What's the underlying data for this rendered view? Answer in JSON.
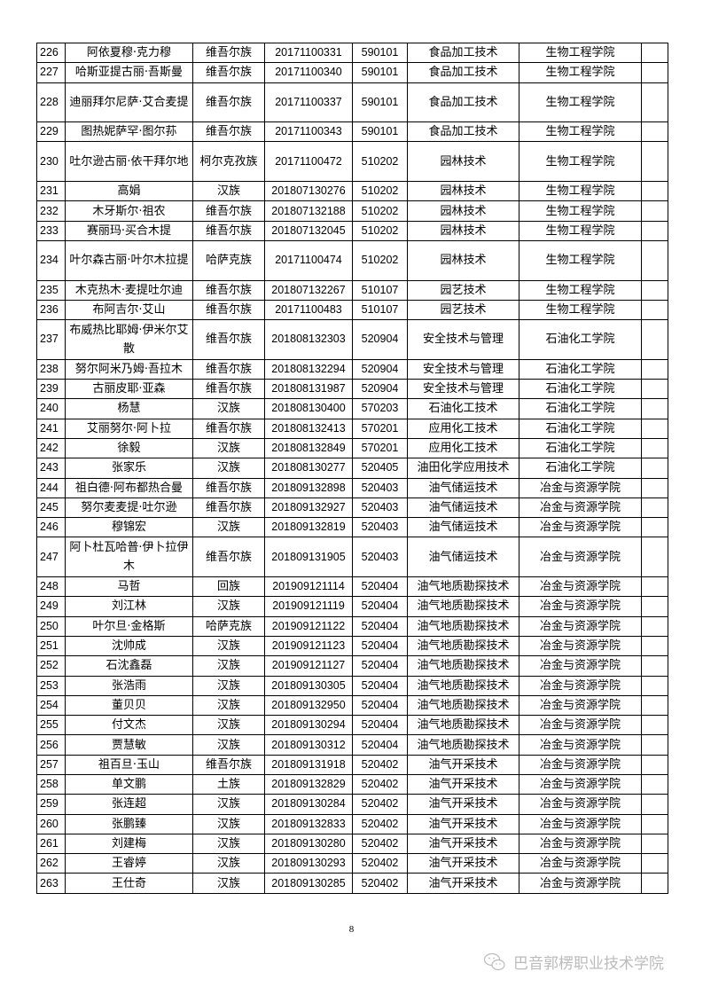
{
  "rows": [
    {
      "no": "226",
      "name": "阿依夏穆·克力穆",
      "ethnicity": "维吾尔族",
      "id": "20171100331",
      "code": "590101",
      "major": "食品加工技术",
      "college": "生物工程学院",
      "note": ""
    },
    {
      "no": "227",
      "name": "哈斯亚提古丽·吾斯曼",
      "ethnicity": "维吾尔族",
      "id": "20171100340",
      "code": "590101",
      "major": "食品加工技术",
      "college": "生物工程学院",
      "note": ""
    },
    {
      "no": "228",
      "name": "迪丽拜尔尼萨·艾合麦提",
      "ethnicity": "维吾尔族",
      "id": "20171100337",
      "code": "590101",
      "major": "食品加工技术",
      "college": "生物工程学院",
      "note": ""
    },
    {
      "no": "229",
      "name": "图热妮萨罕·图尔荪",
      "ethnicity": "维吾尔族",
      "id": "20171100343",
      "code": "590101",
      "major": "食品加工技术",
      "college": "生物工程学院",
      "note": ""
    },
    {
      "no": "230",
      "name": "吐尔逊古丽·依干拜尔地",
      "ethnicity": "柯尔克孜族",
      "id": "20171100472",
      "code": "510202",
      "major": "园林技术",
      "college": "生物工程学院",
      "note": ""
    },
    {
      "no": "231",
      "name": "高娟",
      "ethnicity": "汉族",
      "id": "201807130276",
      "code": "510202",
      "major": "园林技术",
      "college": "生物工程学院",
      "note": ""
    },
    {
      "no": "232",
      "name": "木牙斯尔·祖农",
      "ethnicity": "维吾尔族",
      "id": "201807132188",
      "code": "510202",
      "major": "园林技术",
      "college": "生物工程学院",
      "note": ""
    },
    {
      "no": "233",
      "name": "赛丽玛·买合木提",
      "ethnicity": "维吾尔族",
      "id": "201807132045",
      "code": "510202",
      "major": "园林技术",
      "college": "生物工程学院",
      "note": ""
    },
    {
      "no": "234",
      "name": "叶尔森古丽·叶尔木拉提",
      "ethnicity": "哈萨克族",
      "id": "20171100474",
      "code": "510202",
      "major": "园林技术",
      "college": "生物工程学院",
      "note": ""
    },
    {
      "no": "235",
      "name": "木克热木·麦提吐尔迪",
      "ethnicity": "维吾尔族",
      "id": "201807132267",
      "code": "510107",
      "major": "园艺技术",
      "college": "生物工程学院",
      "note": ""
    },
    {
      "no": "236",
      "name": "布阿吉尔·艾山",
      "ethnicity": "维吾尔族",
      "id": "20171100483",
      "code": "510107",
      "major": "园艺技术",
      "college": "生物工程学院",
      "note": ""
    },
    {
      "no": "237",
      "name": "布威热比耶姆·伊米尔艾散",
      "ethnicity": "维吾尔族",
      "id": "201808132303",
      "code": "520904",
      "major": "安全技术与管理",
      "college": "石油化工学院",
      "note": ""
    },
    {
      "no": "238",
      "name": "努尔阿米乃姆·吾拉木",
      "ethnicity": "维吾尔族",
      "id": "201808132294",
      "code": "520904",
      "major": "安全技术与管理",
      "college": "石油化工学院",
      "note": ""
    },
    {
      "no": "239",
      "name": "古丽皮耶·亚森",
      "ethnicity": "维吾尔族",
      "id": "201808131987",
      "code": "520904",
      "major": "安全技术与管理",
      "college": "石油化工学院",
      "note": ""
    },
    {
      "no": "240",
      "name": "杨慧",
      "ethnicity": "汉族",
      "id": "201808130400",
      "code": "570203",
      "major": "石油化工技术",
      "college": "石油化工学院",
      "note": ""
    },
    {
      "no": "241",
      "name": "艾丽努尔·阿卜拉",
      "ethnicity": "维吾尔族",
      "id": "201808132413",
      "code": "570201",
      "major": "应用化工技术",
      "college": "石油化工学院",
      "note": ""
    },
    {
      "no": "242",
      "name": "徐毅",
      "ethnicity": "汉族",
      "id": "201808132849",
      "code": "570201",
      "major": "应用化工技术",
      "college": "石油化工学院",
      "note": ""
    },
    {
      "no": "243",
      "name": "张家乐",
      "ethnicity": "汉族",
      "id": "201808130277",
      "code": "520405",
      "major": "油田化学应用技术",
      "college": "石油化工学院",
      "note": ""
    },
    {
      "no": "244",
      "name": "祖白德·阿布都热合曼",
      "ethnicity": "维吾尔族",
      "id": "201809132898",
      "code": "520403",
      "major": "油气储运技术",
      "college": "冶金与资源学院",
      "note": ""
    },
    {
      "no": "245",
      "name": "努尔麦麦提·吐尔逊",
      "ethnicity": "维吾尔族",
      "id": "201809132927",
      "code": "520403",
      "major": "油气储运技术",
      "college": "冶金与资源学院",
      "note": ""
    },
    {
      "no": "246",
      "name": "穆锦宏",
      "ethnicity": "汉族",
      "id": "201809132819",
      "code": "520403",
      "major": "油气储运技术",
      "college": "冶金与资源学院",
      "note": ""
    },
    {
      "no": "247",
      "name": "阿卜杜瓦哈普·伊卜拉伊木",
      "ethnicity": "维吾尔族",
      "id": "201809131905",
      "code": "520403",
      "major": "油气储运技术",
      "college": "冶金与资源学院",
      "note": ""
    },
    {
      "no": "248",
      "name": "马哲",
      "ethnicity": "回族",
      "id": "201909121114",
      "code": "520404",
      "major": "油气地质勘探技术",
      "college": "冶金与资源学院",
      "note": ""
    },
    {
      "no": "249",
      "name": "刘江林",
      "ethnicity": "汉族",
      "id": "201909121119",
      "code": "520404",
      "major": "油气地质勘探技术",
      "college": "冶金与资源学院",
      "note": ""
    },
    {
      "no": "250",
      "name": "叶尔旦·金格斯",
      "ethnicity": "哈萨克族",
      "id": "201909121122",
      "code": "520404",
      "major": "油气地质勘探技术",
      "college": "冶金与资源学院",
      "note": ""
    },
    {
      "no": "251",
      "name": "沈帅成",
      "ethnicity": "汉族",
      "id": "201909121123",
      "code": "520404",
      "major": "油气地质勘探技术",
      "college": "冶金与资源学院",
      "note": ""
    },
    {
      "no": "252",
      "name": "石沈鑫磊",
      "ethnicity": "汉族",
      "id": "201909121127",
      "code": "520404",
      "major": "油气地质勘探技术",
      "college": "冶金与资源学院",
      "note": ""
    },
    {
      "no": "253",
      "name": "张浩雨",
      "ethnicity": "汉族",
      "id": "201809130305",
      "code": "520404",
      "major": "油气地质勘探技术",
      "college": "冶金与资源学院",
      "note": ""
    },
    {
      "no": "254",
      "name": "董贝贝",
      "ethnicity": "汉族",
      "id": "201809132950",
      "code": "520404",
      "major": "油气地质勘探技术",
      "college": "冶金与资源学院",
      "note": ""
    },
    {
      "no": "255",
      "name": "付文杰",
      "ethnicity": "汉族",
      "id": "201809130294",
      "code": "520404",
      "major": "油气地质勘探技术",
      "college": "冶金与资源学院",
      "note": ""
    },
    {
      "no": "256",
      "name": "贾慧敏",
      "ethnicity": "汉族",
      "id": "201809130312",
      "code": "520404",
      "major": "油气地质勘探技术",
      "college": "冶金与资源学院",
      "note": ""
    },
    {
      "no": "257",
      "name": "祖百旦·玉山",
      "ethnicity": "维吾尔族",
      "id": "201809131918",
      "code": "520402",
      "major": "油气开采技术",
      "college": "冶金与资源学院",
      "note": ""
    },
    {
      "no": "258",
      "name": "单文鹏",
      "ethnicity": "土族",
      "id": "201809132829",
      "code": "520402",
      "major": "油气开采技术",
      "college": "冶金与资源学院",
      "note": ""
    },
    {
      "no": "259",
      "name": "张连超",
      "ethnicity": "汉族",
      "id": "201809130284",
      "code": "520402",
      "major": "油气开采技术",
      "college": "冶金与资源学院",
      "note": ""
    },
    {
      "no": "260",
      "name": "张鹏臻",
      "ethnicity": "汉族",
      "id": "201809132833",
      "code": "520402",
      "major": "油气开采技术",
      "college": "冶金与资源学院",
      "note": ""
    },
    {
      "no": "261",
      "name": "刘建梅",
      "ethnicity": "汉族",
      "id": "201809130280",
      "code": "520402",
      "major": "油气开采技术",
      "college": "冶金与资源学院",
      "note": ""
    },
    {
      "no": "262",
      "name": "王睿婷",
      "ethnicity": "汉族",
      "id": "201809130293",
      "code": "520402",
      "major": "油气开采技术",
      "college": "冶金与资源学院",
      "note": ""
    },
    {
      "no": "263",
      "name": "王仕奇",
      "ethnicity": "汉族",
      "id": "201809130285",
      "code": "520402",
      "major": "油气开采技术",
      "college": "冶金与资源学院",
      "note": ""
    }
  ],
  "page_number": "8",
  "watermark": {
    "text": "巴音郭楞职业技术学院",
    "icon": "wechat-icon"
  }
}
